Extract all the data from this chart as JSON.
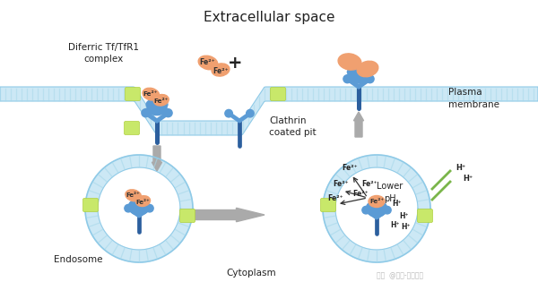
{
  "title": "Extracellular space",
  "bg_color": "#ffffff",
  "membrane_color": "#cce8f5",
  "membrane_border": "#8fcae7",
  "membrane_stripe": "#a8d8ea",
  "receptor_color": "#5b9bd5",
  "receptor_dark": "#2c5f9e",
  "transferrin_color": "#f0a070",
  "clathrin_color": "#c8e86a",
  "arrow_color": "#999999",
  "arrow_fill": "#aaaaaa",
  "text_color": "#222222",
  "fe_label": "Fe²⁺",
  "h_label": "H⁺",
  "labels": {
    "extracellular": "Extracellular space",
    "diferric": "Diferric Tf/TfR1\ncomplex",
    "clathrin": "Clathrin\ncoated pit",
    "plasma": "Plasma\nmembrane",
    "endosome": "Endosome",
    "cytoplasm": "Cytoplasm",
    "lower_ph": "Lower\npH"
  },
  "watermark": "知乎  @小酷-华美生物"
}
